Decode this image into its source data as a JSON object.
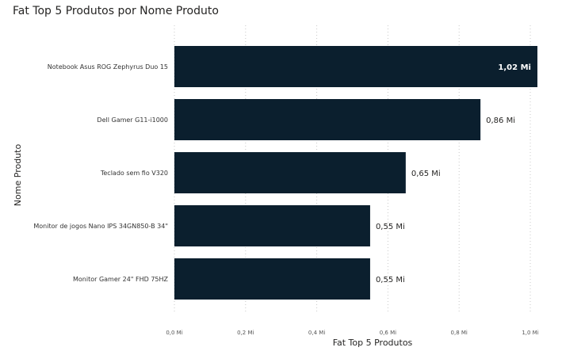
{
  "chart_data": {
    "type": "bar",
    "orientation": "horizontal",
    "title": "Fat Top 5 Produtos por Nome Produto",
    "xlabel": "Fat Top 5 Produtos",
    "ylabel": "Nome Produto",
    "categories": [
      "Notebook Asus ROG Zephyrus Duo 15",
      "Dell Gamer G11-i1000",
      "Teclado sem fio V320",
      "Monitor de jogos Nano IPS 34GN850-B 34\"",
      "Monitor Gamer 24\" FHD 75HZ"
    ],
    "values": [
      1.02,
      0.86,
      0.65,
      0.55,
      0.55
    ],
    "data_labels": [
      "1,02 Mi",
      "0,86 Mi",
      "0,65 Mi",
      "0,55 Mi",
      "0,55 Mi"
    ],
    "xticks": [
      0,
      0.2,
      0.4,
      0.6,
      0.8,
      1.0
    ],
    "xtick_labels": [
      "0,0 Mi",
      "0,2 Mi",
      "0,4 Mi",
      "0,6 Mi",
      "0,8 Mi",
      "1,0 Mi"
    ],
    "xlim": [
      0,
      1.02
    ],
    "grid": true,
    "bar_color": "#0b1f2e",
    "label_inside_color": "#ffffff",
    "label_outside_color": "#252423"
  }
}
